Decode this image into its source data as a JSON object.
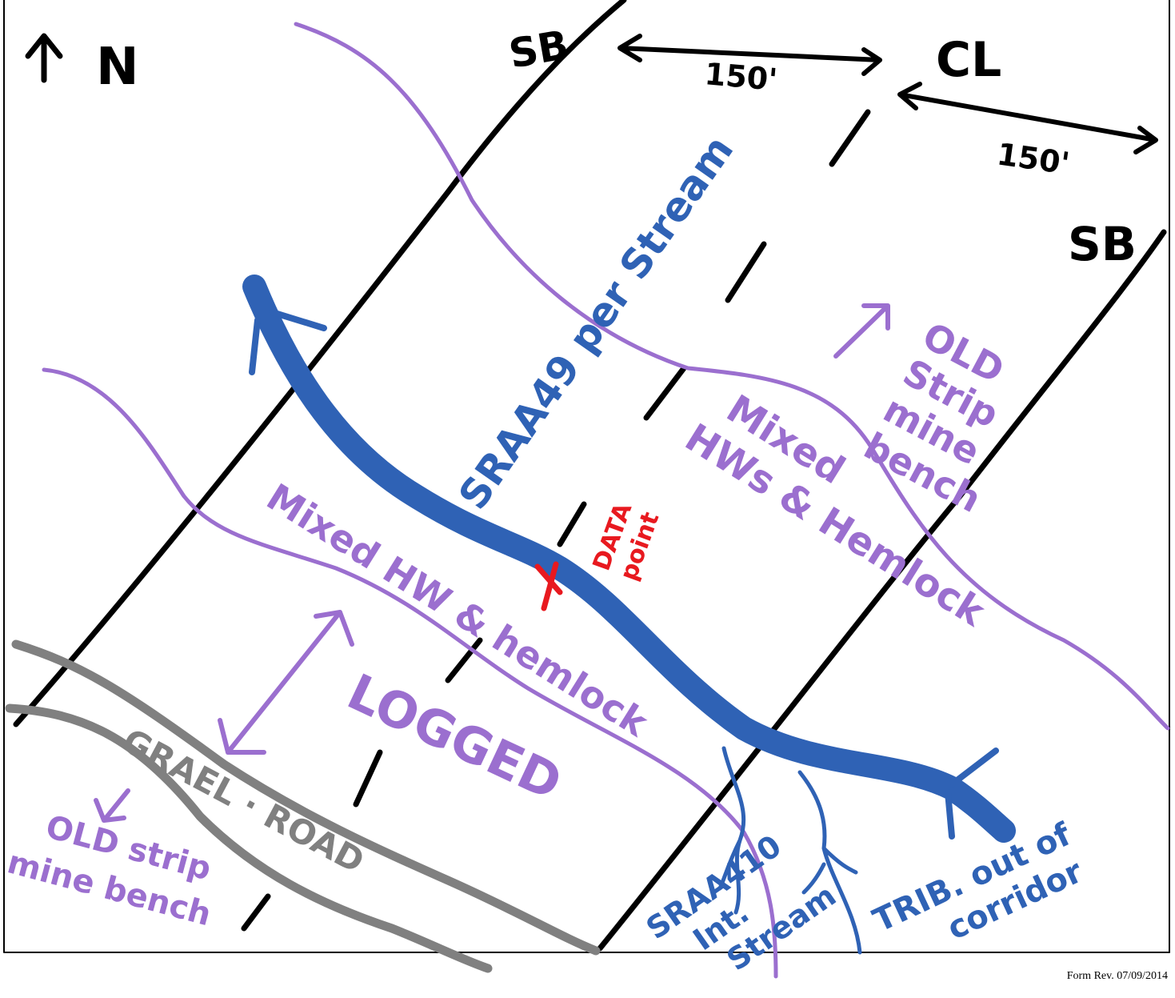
{
  "sketch": {
    "north": "N",
    "left_boundary": "SB",
    "left_distance": "150'",
    "centerline": "CL",
    "right_distance": "150'",
    "right_boundary": "SB",
    "stream": "SRAA49 per Stream",
    "upper_right_area": [
      "OLD",
      "Strip",
      "mine",
      "bench"
    ],
    "upper_mixed": [
      "Mixed",
      "HWs & Hemlock"
    ],
    "data_point": [
      "DATA",
      "point"
    ],
    "lower_mixed": "Mixed HW & hemlock",
    "logged": "LOGGED",
    "road": "GRAEL · ROAD",
    "lower_left_area": [
      "OLD strip",
      "mine bench"
    ],
    "int_stream": [
      "SRAA410",
      "Int.",
      "Stream"
    ],
    "trib": [
      "TRIB. out of",
      "corridor"
    ]
  },
  "footer": "Form Rev. 07/09/2014"
}
